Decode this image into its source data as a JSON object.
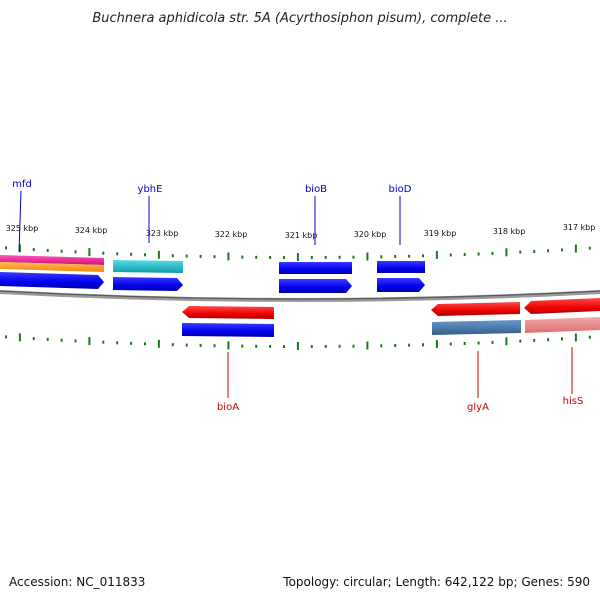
{
  "title": "Buchnera aphidicola str. 5A (Acyrthosiphon pisum), complete ...",
  "footer": {
    "accession": "Accession: NC_011833",
    "summary": "Topology: circular; Length: 642,122 bp; Genes: 590"
  },
  "ruler_labels": [
    "325 kbp",
    "324 kbp",
    "323 kbp",
    "322 kbp",
    "321 kbp",
    "320 kbp",
    "319 kbp",
    "318 kbp",
    "317 kbp"
  ],
  "gene_labels": {
    "mfd": "mfd",
    "ybhE": "ybhE",
    "bioB": "bioB",
    "bioD": "bioD",
    "bioA": "bioA",
    "glyA": "glyA",
    "hisS": "hisS"
  },
  "colors": {
    "forward_label": "#0000cc",
    "reverse_label": "#cc0000",
    "tick": "#1a7a1a",
    "backbone": "#808080",
    "blue": "#0000ee",
    "red": "#ee0000",
    "cyan": "#22bbcc",
    "magenta": "#ee2299",
    "orange": "#ff9922",
    "steelblue": "#4477aa",
    "pink": "#ee8888"
  }
}
